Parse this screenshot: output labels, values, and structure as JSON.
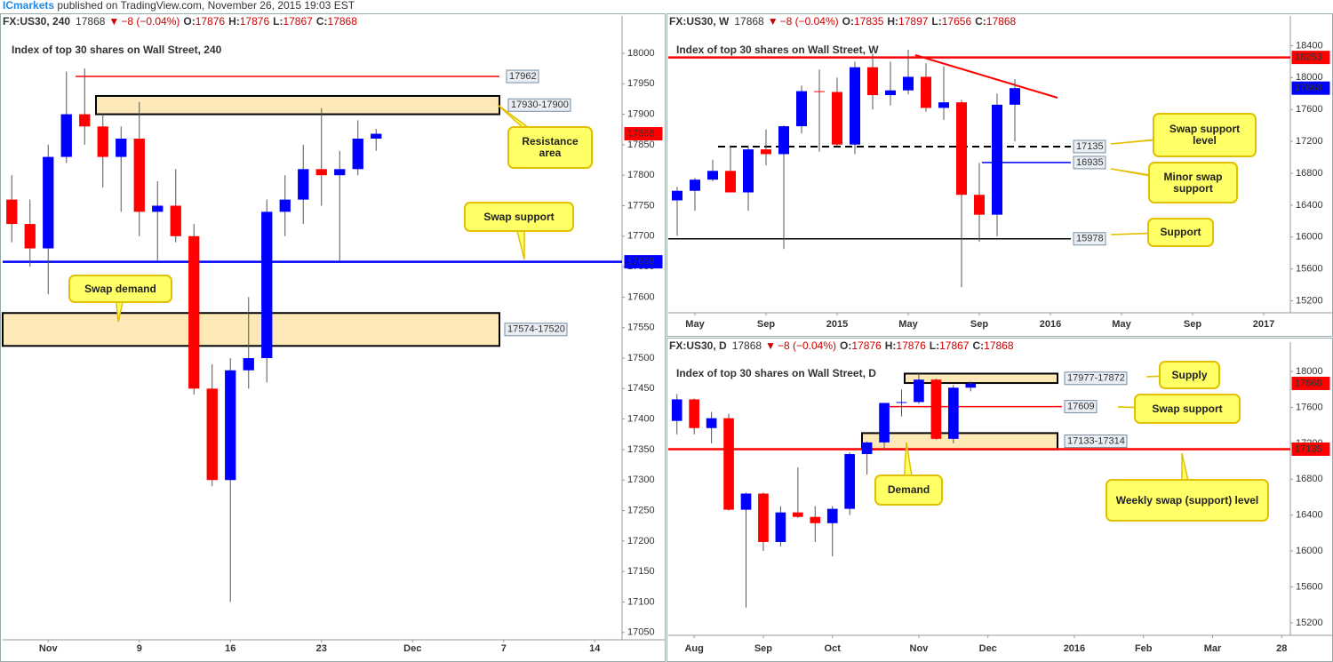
{
  "header": {
    "brand": "ICmarkets",
    "text": "published on TradingView.com, November 26, 2015 19:03 EST"
  },
  "chart_data": [
    {
      "type": "candlestick",
      "symbol": "FX:US30, 240",
      "last": 17868,
      "direction": "▼",
      "change": "−8 (−0.04%)",
      "quote": [
        {
          "key": "O:",
          "value": 17876
        },
        {
          "key": "H:",
          "value": 17876
        },
        {
          "key": "L:",
          "value": 17867
        },
        {
          "key": "C:",
          "value": 17868
        }
      ],
      "title": "Index of top 30 shares on Wall Street, 240",
      "up_color": "#0000ff",
      "down_color": "#ff0000",
      "last_color": "#ff0000",
      "categories": [
        null,
        null,
        "Nov",
        null,
        null,
        null,
        null,
        "9",
        null,
        null,
        null,
        null,
        "16",
        null,
        null,
        null,
        null,
        "23",
        null,
        null,
        null,
        null,
        "Dec",
        null,
        null,
        null,
        null,
        "7",
        null,
        null,
        null,
        null,
        "14",
        null
      ],
      "open": [
        17760,
        17720,
        17680,
        17830,
        17900,
        17880,
        17830,
        17860,
        17740,
        17750,
        17700,
        17450,
        17300,
        17480,
        17500,
        17740,
        17760,
        17810,
        17800,
        17810,
        17860,
        null,
        null,
        null,
        null,
        null,
        null,
        null,
        null,
        null,
        null,
        null,
        null,
        null
      ],
      "high": [
        17800,
        17760,
        17850,
        17970,
        17975,
        17900,
        17880,
        17920,
        17790,
        17810,
        17720,
        17490,
        17500,
        17600,
        17760,
        17800,
        17850,
        17910,
        17840,
        17890,
        17876,
        null,
        null,
        null,
        null,
        null,
        null,
        null,
        null,
        null,
        null,
        null,
        null,
        null
      ],
      "low": [
        17690,
        17650,
        17605,
        17820,
        17850,
        17780,
        17740,
        17700,
        17660,
        17690,
        17440,
        17290,
        17100,
        17450,
        17460,
        17700,
        17720,
        17750,
        17660,
        17800,
        17840,
        null,
        null,
        null,
        null,
        null,
        null,
        null,
        null,
        null,
        null,
        null,
        null,
        null
      ],
      "close": [
        17720,
        17680,
        17830,
        17900,
        17880,
        17830,
        17860,
        17740,
        17750,
        17700,
        17450,
        17300,
        17480,
        17500,
        17740,
        17760,
        17810,
        17800,
        17810,
        17860,
        17868,
        null,
        null,
        null,
        null,
        null,
        null,
        null,
        null,
        null,
        null,
        null,
        null,
        null
      ],
      "ylim": [
        17038,
        18032
      ],
      "yticks": [
        17050,
        17100,
        17150,
        17200,
        17250,
        17300,
        17350,
        17400,
        17450,
        17500,
        17550,
        17600,
        17650,
        17700,
        17750,
        17800,
        17850,
        17900,
        17950,
        18000
      ],
      "levels": [
        {
          "value": 17962,
          "color": "#ff0000",
          "width": 1.5
        },
        {
          "value": 17658,
          "color": "#0000ff",
          "width": 2.5
        }
      ],
      "zones": [
        {
          "from": 17930,
          "to": 17900,
          "label": "17930-17900"
        },
        {
          "from": 17574,
          "to": 17520,
          "label": "17574-17520"
        }
      ],
      "callouts": [
        "Resistance area",
        "Swap support",
        "Swap demand"
      ]
    },
    {
      "type": "candlestick",
      "symbol": "FX:US30, W",
      "last": 17868,
      "direction": "▼",
      "change": "−8 (−0.04%)",
      "quote": [
        {
          "key": "O:",
          "value": 17835
        },
        {
          "key": "H:",
          "value": 17897
        },
        {
          "key": "L:",
          "value": 17656
        },
        {
          "key": "C:",
          "value": 17868
        }
      ],
      "title": "Index of top 30 shares on Wall Street, W",
      "up_color": "#0000ff",
      "down_color": "#ff0000",
      "last_color": "#0000ff",
      "categories": [
        null,
        "May",
        null,
        null,
        null,
        "Sep",
        null,
        null,
        null,
        "2015",
        null,
        null,
        null,
        "May",
        null,
        null,
        null,
        "Sep",
        null,
        null,
        null,
        "2016",
        null,
        null,
        null,
        "May",
        null,
        null,
        null,
        "Sep",
        null,
        null,
        null,
        "2017",
        null
      ],
      "open": [
        16460,
        16580,
        16720,
        16830,
        16560,
        17100,
        17040,
        17390,
        17830,
        17820,
        17160,
        18130,
        17780,
        17840,
        18010,
        17620,
        17690,
        16530,
        16280,
        17660,
        null,
        null,
        null,
        null,
        null,
        null,
        null,
        null,
        null,
        null,
        null,
        null,
        null,
        null,
        null
      ],
      "high": [
        16630,
        16740,
        16970,
        17150,
        17150,
        17350,
        17400,
        17900,
        18100,
        18000,
        18200,
        18300,
        18200,
        18350,
        18180,
        18140,
        17720,
        16930,
        17800,
        17980,
        null,
        null,
        null,
        null,
        null,
        null,
        null,
        null,
        null,
        null,
        null,
        null,
        null,
        null,
        null
      ],
      "low": [
        16015,
        16330,
        16700,
        16560,
        16330,
        16900,
        15850,
        17300,
        17070,
        17140,
        17040,
        17600,
        17650,
        17790,
        17570,
        17470,
        15370,
        15940,
        16010,
        17200,
        null,
        null,
        null,
        null,
        null,
        null,
        null,
        null,
        null,
        null,
        null,
        null,
        null,
        null,
        null
      ],
      "close": [
        16580,
        16720,
        16830,
        16560,
        17100,
        17040,
        17390,
        17830,
        17820,
        17160,
        18130,
        17780,
        17840,
        18010,
        17620,
        17690,
        16530,
        16280,
        17660,
        17868,
        null,
        null,
        null,
        null,
        null,
        null,
        null,
        null,
        null,
        null,
        null,
        null,
        null,
        null,
        null
      ],
      "ylim": [
        15050,
        18550
      ],
      "yticks": [
        15200,
        15600,
        16000,
        16400,
        16800,
        17200,
        17600,
        18000,
        18400
      ],
      "levels": [
        {
          "value": 18253,
          "color": "#ff0000",
          "width": 2.5
        },
        {
          "value": 17135,
          "color": "#000000",
          "width": 2,
          "style": "dashed"
        },
        {
          "value": 16935,
          "color": "#0000ff",
          "width": 1.5
        },
        {
          "value": 15978,
          "color": "#000000",
          "width": 1.5
        }
      ],
      "zones": [],
      "callouts": [
        "Swap support level",
        "Minor swap support",
        "Support"
      ]
    },
    {
      "type": "candlestick",
      "symbol": "FX:US30, D",
      "last": 17868,
      "direction": "▼",
      "change": "−8 (−0.04%)",
      "quote": [
        {
          "key": "O:",
          "value": 17876
        },
        {
          "key": "H:",
          "value": 17876
        },
        {
          "key": "L:",
          "value": 17867
        },
        {
          "key": "C:",
          "value": 17868
        }
      ],
      "title": "Index of top 30 shares on Wall Street, D",
      "up_color": "#0000ff",
      "down_color": "#ff0000",
      "last_color": "#ff0000",
      "categories": [
        null,
        "Aug",
        null,
        null,
        null,
        "Sep",
        null,
        null,
        null,
        "Oct",
        null,
        null,
        null,
        null,
        "Nov",
        null,
        null,
        null,
        "Dec",
        null,
        null,
        null,
        null,
        "2016",
        null,
        null,
        null,
        "Feb",
        null,
        null,
        null,
        "Mar",
        null,
        null,
        null,
        "28"
      ],
      "open": [
        17450,
        17690,
        17370,
        17480,
        16460,
        16640,
        16100,
        16430,
        16380,
        16310,
        16470,
        17080,
        17210,
        17650,
        17660,
        17910,
        17250,
        17820,
        null,
        null,
        null,
        null,
        null,
        null,
        null,
        null,
        null,
        null,
        null,
        null,
        null,
        null,
        null,
        null,
        null,
        null
      ],
      "high": [
        17750,
        17700,
        17550,
        17530,
        16650,
        16650,
        16500,
        16930,
        16500,
        16500,
        17100,
        17220,
        17650,
        17800,
        17980,
        17920,
        17850,
        17890,
        null,
        null,
        null,
        null,
        null,
        null,
        null,
        null,
        null,
        null,
        null,
        null,
        null,
        null,
        null,
        null,
        null,
        null
      ],
      "low": [
        17300,
        17300,
        17200,
        16450,
        15370,
        16000,
        16050,
        16370,
        16100,
        15940,
        16400,
        16850,
        17130,
        17500,
        17640,
        17240,
        17200,
        17780,
        null,
        null,
        null,
        null,
        null,
        null,
        null,
        null,
        null,
        null,
        null,
        null,
        null,
        null,
        null,
        null,
        null,
        null
      ],
      "close": [
        17690,
        17370,
        17480,
        16460,
        16640,
        16100,
        16430,
        16380,
        16310,
        16470,
        17080,
        17210,
        17650,
        17660,
        17910,
        17250,
        17820,
        17868,
        null,
        null,
        null,
        null,
        null,
        null,
        null,
        null,
        null,
        null,
        null,
        null,
        null,
        null,
        null,
        null,
        null,
        null
      ],
      "ylim": [
        15060,
        18130
      ],
      "yticks": [
        15200,
        15600,
        16000,
        16400,
        16800,
        17200,
        17600,
        18000
      ],
      "levels": [
        {
          "value": 17609,
          "color": "#ff0000",
          "width": 1.5
        },
        {
          "value": 17135,
          "color": "#ff0000",
          "width": 2.5
        }
      ],
      "zones": [
        {
          "from": 17977,
          "to": 17872,
          "label": "17977-17872"
        },
        {
          "from": 17133,
          "to": 17314,
          "label": "17133-17314"
        }
      ],
      "callouts": [
        "Supply",
        "Swap support",
        "Demand",
        "Weekly swap (support) level"
      ]
    }
  ]
}
